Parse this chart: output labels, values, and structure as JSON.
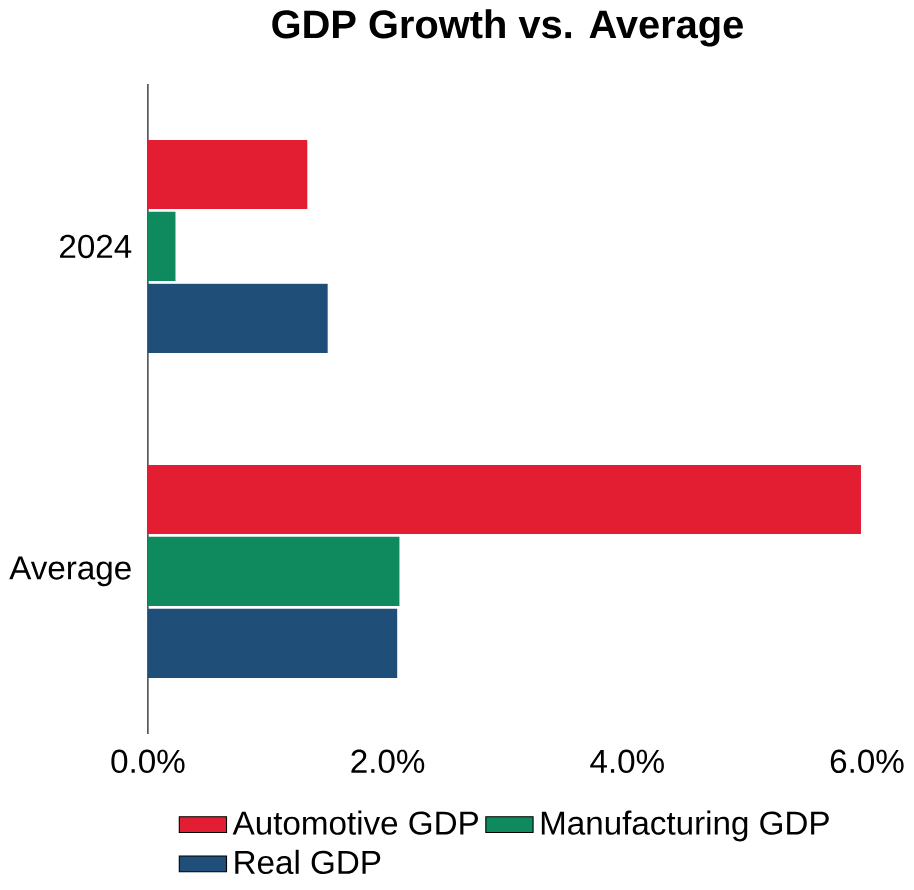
{
  "chart_data": {
    "type": "bar",
    "orientation": "horizontal",
    "title": "GDP Growth vs. Average",
    "categories": [
      "2024",
      "Average"
    ],
    "series": [
      {
        "name": "Automotive GDP",
        "color": "#e31e32",
        "values": [
          1.33,
          5.95
        ]
      },
      {
        "name": "Manufacturing GDP",
        "color": "#0f8a5f",
        "values": [
          0.23,
          2.1
        ]
      },
      {
        "name": "Real GDP",
        "color": "#1f4e79",
        "values": [
          1.5,
          2.08
        ]
      }
    ],
    "xlim": [
      0,
      6
    ],
    "xticks": [
      {
        "value": 0,
        "label": "0.0%"
      },
      {
        "value": 2,
        "label": "2.0%"
      },
      {
        "value": 4,
        "label": "4.0%"
      },
      {
        "value": 6,
        "label": "6.0%"
      }
    ],
    "legend": "bottom",
    "grid": false
  }
}
